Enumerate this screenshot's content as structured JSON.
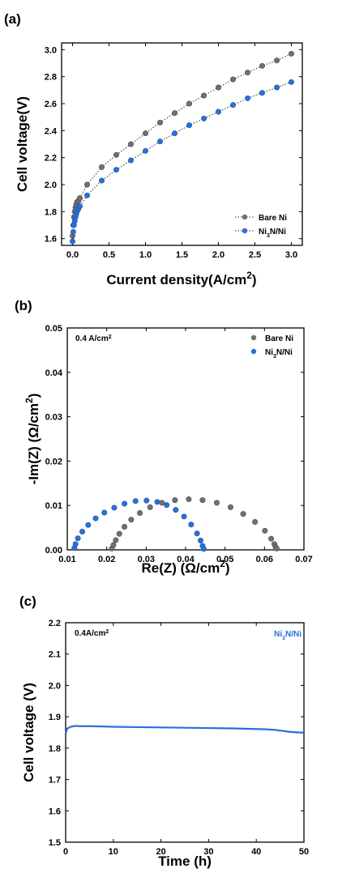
{
  "panels": {
    "a": {
      "label": "(a)"
    },
    "b": {
      "label": "(b)"
    },
    "c": {
      "label": "(c)"
    }
  },
  "colors": {
    "bare_ni": "#707070",
    "ni3n_ni": "#2a6fd6",
    "line_c": "#2a6fd6"
  },
  "chart_data": [
    {
      "id": "a",
      "type": "line",
      "xlabel": "Current density(A/cm",
      "xlabel_sup": "2",
      "xlabel_tail": ")",
      "ylabel": "Cell voltage(V)",
      "xlim": [
        -0.15,
        3.15
      ],
      "ylim": [
        1.55,
        3.05
      ],
      "xticks": [
        "0.0",
        "0.5",
        "1.0",
        "1.5",
        "2.0",
        "2.5",
        "3.0"
      ],
      "xtick_values": [
        0,
        0.5,
        1.0,
        1.5,
        2.0,
        2.5,
        3.0
      ],
      "yticks": [
        "1.6",
        "1.8",
        "2.0",
        "2.2",
        "2.4",
        "2.6",
        "2.8",
        "3.0"
      ],
      "ytick_values": [
        1.6,
        1.8,
        2.0,
        2.2,
        2.4,
        2.6,
        2.8,
        3.0
      ],
      "legend_position": "bottom-right",
      "series": [
        {
          "name": "Bare Ni",
          "x": [
            0.0,
            0.01,
            0.02,
            0.03,
            0.04,
            0.05,
            0.06,
            0.08,
            0.1,
            0.2,
            0.4,
            0.6,
            0.8,
            1.0,
            1.2,
            1.4,
            1.6,
            1.8,
            2.0,
            2.2,
            2.4,
            2.6,
            2.8,
            3.0
          ],
          "y": [
            1.62,
            1.7,
            1.76,
            1.8,
            1.83,
            1.85,
            1.87,
            1.88,
            1.9,
            2.0,
            2.13,
            2.22,
            2.3,
            2.38,
            2.46,
            2.53,
            2.6,
            2.66,
            2.72,
            2.78,
            2.83,
            2.88,
            2.92,
            2.97
          ]
        },
        {
          "name": "Ni",
          "name_sub": "3",
          "name_tail": "N/Ni",
          "x": [
            0.0,
            0.01,
            0.02,
            0.03,
            0.04,
            0.05,
            0.06,
            0.08,
            0.1,
            0.2,
            0.4,
            0.6,
            0.8,
            1.0,
            1.2,
            1.4,
            1.6,
            1.8,
            2.0,
            2.2,
            2.4,
            2.6,
            2.8,
            3.0
          ],
          "y": [
            1.58,
            1.65,
            1.7,
            1.73,
            1.76,
            1.78,
            1.8,
            1.82,
            1.84,
            1.92,
            2.03,
            2.11,
            2.18,
            2.25,
            2.32,
            2.38,
            2.44,
            2.49,
            2.54,
            2.59,
            2.64,
            2.68,
            2.72,
            2.76
          ]
        }
      ]
    },
    {
      "id": "b",
      "type": "scatter",
      "xlabel": "Re(Z) (Ω/cm",
      "xlabel_sup": "2",
      "xlabel_tail": ")",
      "ylabel": "-Im(Z) (Ω/cm",
      "ylabel_sup": "2",
      "ylabel_tail": ")",
      "annotation": "0.4 A/cm",
      "annotation_sup": "2",
      "xlim": [
        0.01,
        0.07
      ],
      "ylim": [
        0.0,
        0.05
      ],
      "xticks": [
        "0.01",
        "0.02",
        "0.03",
        "0.04",
        "0.05",
        "0.06",
        "0.07"
      ],
      "xtick_values": [
        0.01,
        0.02,
        0.03,
        0.04,
        0.05,
        0.06,
        0.07
      ],
      "yticks": [
        "0.00",
        "0.01",
        "0.02",
        "0.03",
        "0.04",
        "0.05"
      ],
      "ytick_values": [
        0.0,
        0.01,
        0.02,
        0.03,
        0.04,
        0.05
      ],
      "legend_position": "top-right",
      "series": [
        {
          "name": "Bare Ni",
          "x": [
            0.0213,
            0.0217,
            0.0223,
            0.0232,
            0.0245,
            0.0262,
            0.0284,
            0.031,
            0.034,
            0.0373,
            0.0408,
            0.0443,
            0.0479,
            0.0514,
            0.0546,
            0.0576,
            0.0601,
            0.0617,
            0.0625,
            0.0628,
            0.0631
          ],
          "y": [
            0.0003,
            0.0011,
            0.0022,
            0.0036,
            0.0052,
            0.0068,
            0.0083,
            0.0096,
            0.0106,
            0.0112,
            0.0114,
            0.0112,
            0.0106,
            0.0096,
            0.0081,
            0.0063,
            0.0043,
            0.0025,
            0.0013,
            0.0007,
            0.0003
          ]
        },
        {
          "name": "Ni",
          "name_sub": "3",
          "name_tail": "N/Ni",
          "x": [
            0.0118,
            0.0121,
            0.0127,
            0.0138,
            0.0153,
            0.0172,
            0.0194,
            0.0219,
            0.0245,
            0.0273,
            0.0301,
            0.0328,
            0.0352,
            0.0375,
            0.0396,
            0.0414,
            0.0429,
            0.0438,
            0.0443,
            0.0446
          ],
          "y": [
            0.0004,
            0.0013,
            0.0026,
            0.0041,
            0.0056,
            0.0071,
            0.0084,
            0.0095,
            0.0104,
            0.011,
            0.0111,
            0.0108,
            0.0101,
            0.009,
            0.0075,
            0.0057,
            0.0037,
            0.0021,
            0.0009,
            0.0002
          ]
        }
      ]
    },
    {
      "id": "c",
      "type": "line",
      "xlabel": "Time (h)",
      "ylabel": "Cell voltage (V)",
      "annotation": "0.4A/cm",
      "annotation_sup": "2",
      "xlim": [
        0,
        50
      ],
      "ylim": [
        1.5,
        2.2
      ],
      "xticks": [
        "0",
        "10",
        "20",
        "30",
        "40",
        "50"
      ],
      "xtick_values": [
        0,
        10,
        20,
        30,
        40,
        50
      ],
      "yticks": [
        "1.5",
        "1.6",
        "1.7",
        "1.8",
        "1.9",
        "2.0",
        "2.1",
        "2.2"
      ],
      "ytick_values": [
        1.5,
        1.6,
        1.7,
        1.8,
        1.9,
        2.0,
        2.1,
        2.2
      ],
      "legend_position": "top-right",
      "series": [
        {
          "name": "Ni",
          "name_sub": "3",
          "name_tail": "N/Ni",
          "x": [
            0,
            0.3,
            1,
            2,
            3,
            5,
            8,
            10,
            15,
            20,
            25,
            30,
            35,
            40,
            42,
            44,
            45,
            46,
            47,
            48,
            49,
            50
          ],
          "y": [
            1.845,
            1.862,
            1.868,
            1.871,
            1.87,
            1.87,
            1.869,
            1.868,
            1.867,
            1.866,
            1.865,
            1.864,
            1.863,
            1.861,
            1.86,
            1.858,
            1.856,
            1.854,
            1.852,
            1.851,
            1.85,
            1.849
          ]
        }
      ]
    }
  ]
}
